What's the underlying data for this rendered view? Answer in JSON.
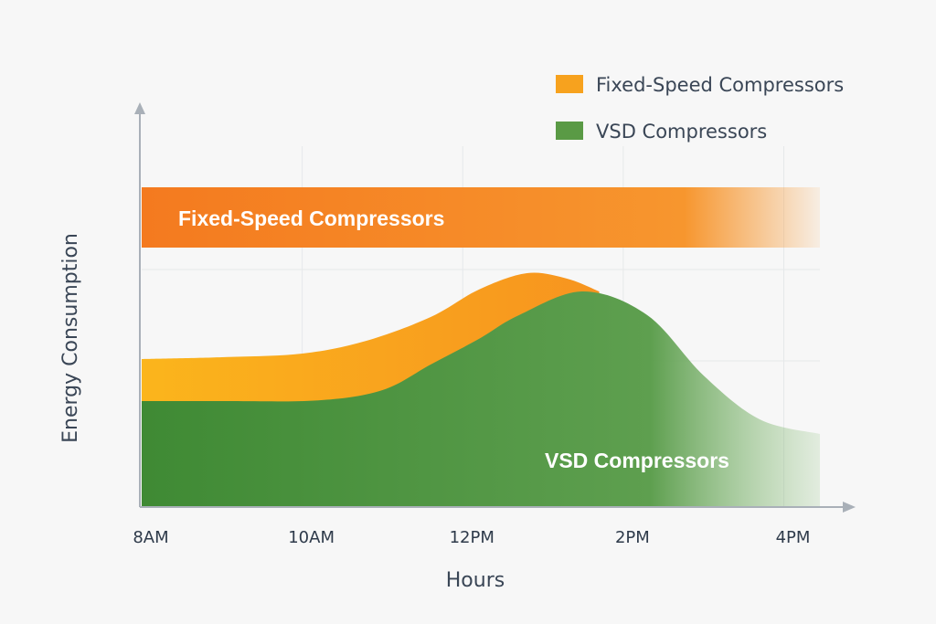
{
  "chart_data": {
    "type": "area",
    "title": "",
    "xlabel": "Hours",
    "ylabel": "Energy Consumption",
    "xlim": [
      8,
      16.45
    ],
    "ylim": [
      0,
      10
    ],
    "x_ticks": [
      {
        "value": 8,
        "label": "8AM"
      },
      {
        "value": 10,
        "label": "10AM"
      },
      {
        "value": 12,
        "label": "12PM"
      },
      {
        "value": 14,
        "label": "2PM"
      },
      {
        "value": 16,
        "label": "4PM"
      }
    ],
    "grid": true,
    "legend": {
      "placement": "top-right",
      "entries": [
        {
          "label": "Fixed-Speed Compressors",
          "color": "#f7a21e"
        },
        {
          "label": "VSD Compressors",
          "color": "#5a9a45"
        }
      ]
    },
    "series": [
      {
        "name": "Fixed-Speed Compressors",
        "label": "Fixed-Speed Compressors",
        "kind": "band",
        "color": "#f47a1f",
        "low": 7.1,
        "high": 8.75,
        "x": [
          8,
          16.45
        ]
      },
      {
        "name": "Fixed-Speed Compressors (load curve)",
        "color": "#f7a21e",
        "x": [
          8,
          9,
          10,
          10.8,
          11.6,
          12.2,
          12.8,
          13.3,
          13.7
        ],
        "y": [
          4.05,
          4.1,
          4.2,
          4.55,
          5.2,
          5.95,
          6.4,
          6.25,
          5.9
        ]
      },
      {
        "name": "VSD Compressors",
        "label": "VSD Compressors",
        "color": "#4f9a3c",
        "x": [
          8,
          9,
          10.2,
          11,
          11.6,
          12.2,
          12.7,
          13.5,
          14.3,
          15,
          15.7,
          16.45
        ],
        "y": [
          2.9,
          2.9,
          2.92,
          3.2,
          3.9,
          4.6,
          5.25,
          5.9,
          5.25,
          3.6,
          2.4,
          2.0
        ]
      }
    ]
  }
}
